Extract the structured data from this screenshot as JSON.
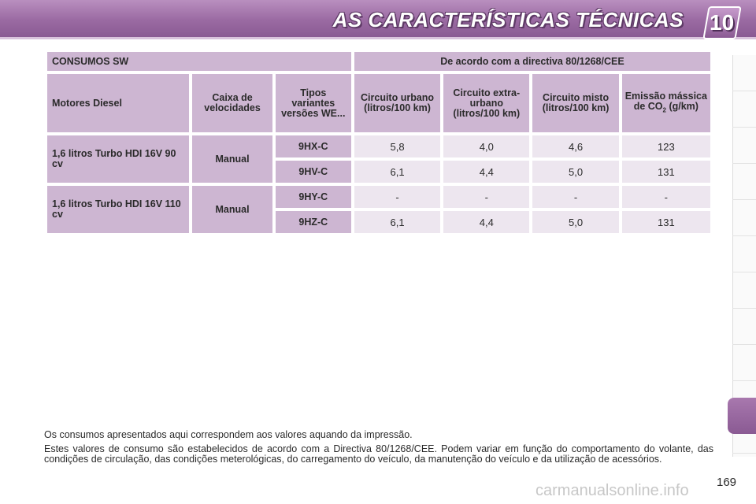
{
  "header": {
    "title": "AS CARACTERÍSTICAS TÉCNICAS",
    "chapter": "10"
  },
  "table": {
    "title_left": "CONSUMOS SW",
    "title_right": "De acordo com a directiva 80/1268/CEE",
    "columns": {
      "engine": "Motores Diesel",
      "gearbox": "Caixa de velocidades",
      "types": "Tipos variantes versões WE...",
      "urban": "Circuito urbano (litros/100 km)",
      "extra_urban": "Circuito extra-urbano (litros/100 km)",
      "mixed": "Circuito misto (litros/100 km)",
      "co2_prefix": "Emissão mássica de CO",
      "co2_sub": "2",
      "co2_suffix": " (g/km)"
    },
    "groups": [
      {
        "engine": "1,6 litros Turbo HDI 16V 90 cv",
        "gearbox": "Manual",
        "rows": [
          {
            "code": "9HX-C",
            "urban": "5,8",
            "extra_urban": "4,0",
            "mixed": "4,6",
            "co2": "123"
          },
          {
            "code": "9HV-C",
            "urban": "6,1",
            "extra_urban": "4,4",
            "mixed": "5,0",
            "co2": "131"
          }
        ]
      },
      {
        "engine": "1,6 litros Turbo HDI 16V 110 cv",
        "gearbox": "Manual",
        "rows": [
          {
            "code": "9HY-C",
            "urban": "-",
            "extra_urban": "-",
            "mixed": "-",
            "co2": "-"
          },
          {
            "code": "9HZ-C",
            "urban": "6,1",
            "extra_urban": "4,4",
            "mixed": "5,0",
            "co2": "131"
          }
        ]
      }
    ]
  },
  "notes": {
    "line1": "Os consumos apresentados aqui correspondem aos valores aquando da impressão.",
    "line2": "Estes valores de consumo são estabelecidos de acordo com a Directiva 80/1268/CEE. Podem variar em função do comportamento do volante, das condições de circulação, das condições meterológicas, do carregamento do veículo, da manutenção do veículo e da utilização de acessórios."
  },
  "page_number": "169",
  "watermark": "carmanualsonline.info",
  "colors": {
    "accent": "#9a6aa2",
    "header_cell": "#cdb6d2",
    "value_cell": "#ede6ef"
  }
}
